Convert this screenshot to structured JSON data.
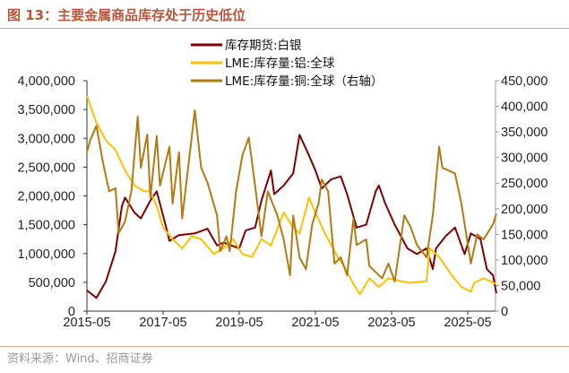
{
  "title": "图 13：主要金属商品库存处于历史低位",
  "source": "资料来源：Wind、招商证券",
  "chart_data": {
    "type": "line",
    "title": "图 13：主要金属商品库存处于历史低位",
    "x_ticks": [
      "2015-05",
      "2017-05",
      "2019-05",
      "2021-05",
      "2023-05",
      "2025-05"
    ],
    "y_left": {
      "range": [
        0,
        4000000
      ],
      "ticks": [
        "0",
        "500,000",
        "1,000,000",
        "1,500,000",
        "2,000,000",
        "2,500,000",
        "3,000,000",
        "3,500,000",
        "4,000,000"
      ]
    },
    "y_right": {
      "range": [
        0,
        450000
      ],
      "ticks": [
        "0",
        "50,000",
        "100,000",
        "150,000",
        "200,000",
        "250,000",
        "300,000",
        "350,000",
        "400,000",
        "450,000"
      ]
    },
    "grid": false,
    "legend_placement": "top-center",
    "series": [
      {
        "name": "库存期货:白银",
        "axis": "left",
        "color": "#800000",
        "points": [
          [
            "2015-05",
            360000
          ],
          [
            "2015-08",
            230000
          ],
          [
            "2015-11",
            520000
          ],
          [
            "2016-02",
            1040000
          ],
          [
            "2016-04",
            1820000
          ],
          [
            "2016-05",
            1970000
          ],
          [
            "2016-08",
            1710000
          ],
          [
            "2016-10",
            1610000
          ],
          [
            "2017-01",
            1920000
          ],
          [
            "2017-03",
            2080000
          ],
          [
            "2017-06",
            1450000
          ],
          [
            "2017-07",
            1220000
          ],
          [
            "2017-10",
            1320000
          ],
          [
            "2018-03",
            1350000
          ],
          [
            "2018-07",
            1430000
          ],
          [
            "2018-10",
            1140000
          ],
          [
            "2018-12",
            1190000
          ],
          [
            "2019-05",
            1090000
          ],
          [
            "2019-07",
            1400000
          ],
          [
            "2019-10",
            1450000
          ],
          [
            "2019-12",
            1920000
          ],
          [
            "2020-03",
            2440000
          ],
          [
            "2020-04",
            2030000
          ],
          [
            "2020-07",
            2180000
          ],
          [
            "2020-10",
            2390000
          ],
          [
            "2020-12",
            3060000
          ],
          [
            "2021-03",
            2700000
          ],
          [
            "2021-05",
            2440000
          ],
          [
            "2021-07",
            2130000
          ],
          [
            "2021-10",
            2290000
          ],
          [
            "2022-01",
            2340000
          ],
          [
            "2022-03",
            2030000
          ],
          [
            "2022-06",
            1450000
          ],
          [
            "2022-09",
            1500000
          ],
          [
            "2022-12",
            2080000
          ],
          [
            "2023-01",
            2180000
          ],
          [
            "2023-03",
            1870000
          ],
          [
            "2023-06",
            1500000
          ],
          [
            "2023-10",
            1090000
          ],
          [
            "2024-01",
            990000
          ],
          [
            "2024-04",
            1090000
          ],
          [
            "2024-06",
            730000
          ],
          [
            "2024-07",
            1090000
          ],
          [
            "2024-10",
            1300000
          ],
          [
            "2025-01",
            1450000
          ],
          [
            "2025-04",
            990000
          ],
          [
            "2025-06",
            1350000
          ],
          [
            "2025-09",
            1250000
          ],
          [
            "2025-11",
            730000
          ],
          [
            "2026-01",
            620000
          ],
          [
            "2026-02",
            310000
          ]
        ]
      },
      {
        "name": "LME:库存量:铝:全球",
        "axis": "left",
        "color": "#ffc000",
        "points": [
          [
            "2015-05",
            3740000
          ],
          [
            "2015-08",
            3270000
          ],
          [
            "2015-11",
            2960000
          ],
          [
            "2016-02",
            2800000
          ],
          [
            "2016-05",
            2440000
          ],
          [
            "2016-08",
            2180000
          ],
          [
            "2016-11",
            2080000
          ],
          [
            "2017-01",
            2080000
          ],
          [
            "2017-03",
            1820000
          ],
          [
            "2017-05",
            1450000
          ],
          [
            "2017-08",
            1250000
          ],
          [
            "2017-11",
            1090000
          ],
          [
            "2018-02",
            1300000
          ],
          [
            "2018-05",
            1250000
          ],
          [
            "2018-09",
            990000
          ],
          [
            "2018-12",
            1090000
          ],
          [
            "2019-03",
            1250000
          ],
          [
            "2019-06",
            990000
          ],
          [
            "2019-09",
            940000
          ],
          [
            "2019-12",
            1250000
          ],
          [
            "2020-03",
            1140000
          ],
          [
            "2020-07",
            1710000
          ],
          [
            "2020-10",
            1450000
          ],
          [
            "2020-12",
            1350000
          ],
          [
            "2021-03",
            1970000
          ],
          [
            "2021-05",
            1710000
          ],
          [
            "2021-08",
            1350000
          ],
          [
            "2021-12",
            940000
          ],
          [
            "2022-02",
            780000
          ],
          [
            "2022-05",
            470000
          ],
          [
            "2022-07",
            290000
          ],
          [
            "2022-10",
            570000
          ],
          [
            "2023-01",
            420000
          ],
          [
            "2023-04",
            570000
          ],
          [
            "2023-08",
            520000
          ],
          [
            "2023-11",
            490000
          ],
          [
            "2024-04",
            520000
          ],
          [
            "2024-05",
            1090000
          ],
          [
            "2024-08",
            940000
          ],
          [
            "2024-12",
            620000
          ],
          [
            "2025-03",
            420000
          ],
          [
            "2025-06",
            340000
          ],
          [
            "2025-07",
            490000
          ],
          [
            "2025-10",
            570000
          ],
          [
            "2026-02",
            470000
          ]
        ]
      },
      {
        "name": "LME:库存量:铜:全球（右轴）",
        "axis": "right",
        "color": "#b47a12",
        "points": [
          [
            "2015-05",
            310000
          ],
          [
            "2015-06",
            333000
          ],
          [
            "2015-08",
            362000
          ],
          [
            "2015-10",
            292000
          ],
          [
            "2015-12",
            234000
          ],
          [
            "2016-02",
            240000
          ],
          [
            "2016-03",
            152000
          ],
          [
            "2016-05",
            175000
          ],
          [
            "2016-07",
            234000
          ],
          [
            "2016-09",
            380000
          ],
          [
            "2016-10",
            280000
          ],
          [
            "2016-12",
            345000
          ],
          [
            "2017-01",
            222000
          ],
          [
            "2017-03",
            342000
          ],
          [
            "2017-04",
            245000
          ],
          [
            "2017-07",
            321000
          ],
          [
            "2017-08",
            210000
          ],
          [
            "2017-10",
            310000
          ],
          [
            "2017-11",
            181000
          ],
          [
            "2018-02",
            339000
          ],
          [
            "2018-03",
            392000
          ],
          [
            "2018-05",
            280000
          ],
          [
            "2018-07",
            251000
          ],
          [
            "2018-10",
            187000
          ],
          [
            "2018-11",
            117000
          ],
          [
            "2019-01",
            146000
          ],
          [
            "2019-02",
            117000
          ],
          [
            "2019-04",
            234000
          ],
          [
            "2019-06",
            304000
          ],
          [
            "2019-08",
            339000
          ],
          [
            "2019-10",
            245000
          ],
          [
            "2019-12",
            146000
          ],
          [
            "2020-02",
            234000
          ],
          [
            "2020-05",
            187000
          ],
          [
            "2020-07",
            140000
          ],
          [
            "2020-09",
            70000
          ],
          [
            "2020-10",
            187000
          ],
          [
            "2020-12",
            105000
          ],
          [
            "2021-02",
            82000
          ],
          [
            "2021-04",
            170000
          ],
          [
            "2021-06",
            210000
          ],
          [
            "2021-07",
            257000
          ],
          [
            "2021-09",
            234000
          ],
          [
            "2021-11",
            93000
          ],
          [
            "2022-01",
            105000
          ],
          [
            "2022-03",
            70000
          ],
          [
            "2022-05",
            181000
          ],
          [
            "2022-06",
            129000
          ],
          [
            "2022-09",
            140000
          ],
          [
            "2022-10",
            88000
          ],
          [
            "2023-02",
            64000
          ],
          [
            "2023-04",
            93000
          ],
          [
            "2023-06",
            58000
          ],
          [
            "2023-09",
            187000
          ],
          [
            "2023-11",
            164000
          ],
          [
            "2024-01",
            129000
          ],
          [
            "2024-04",
            105000
          ],
          [
            "2024-06",
            187000
          ],
          [
            "2024-08",
            321000
          ],
          [
            "2024-09",
            280000
          ],
          [
            "2025-01",
            269000
          ],
          [
            "2025-03",
            210000
          ],
          [
            "2025-06",
            93000
          ],
          [
            "2025-08",
            150000
          ],
          [
            "2025-10",
            140000
          ],
          [
            "2026-01",
            170000
          ],
          [
            "2026-02",
            190000
          ]
        ]
      }
    ]
  }
}
